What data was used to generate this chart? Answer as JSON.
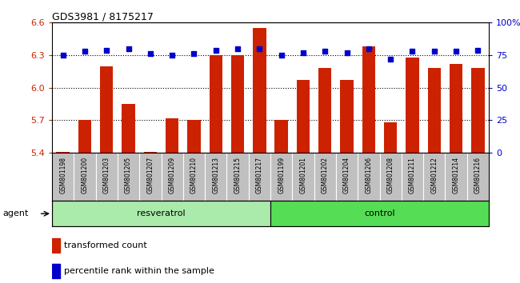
{
  "title": "GDS3981 / 8175217",
  "samples": [
    "GSM801198",
    "GSM801200",
    "GSM801203",
    "GSM801205",
    "GSM801207",
    "GSM801209",
    "GSM801210",
    "GSM801213",
    "GSM801215",
    "GSM801217",
    "GSM801199",
    "GSM801201",
    "GSM801202",
    "GSM801204",
    "GSM801206",
    "GSM801208",
    "GSM801211",
    "GSM801212",
    "GSM801214",
    "GSM801216"
  ],
  "bar_values": [
    5.41,
    5.7,
    6.2,
    5.85,
    5.41,
    5.72,
    5.7,
    6.3,
    6.3,
    6.55,
    5.7,
    6.07,
    6.18,
    6.07,
    6.38,
    5.68,
    6.28,
    6.18,
    6.22,
    6.18
  ],
  "percentile_values": [
    75,
    78,
    79,
    80,
    76,
    75,
    76,
    79,
    80,
    80,
    75,
    77,
    78,
    77,
    80,
    72,
    78,
    78,
    78,
    79
  ],
  "groups": [
    "resveratrol",
    "resveratrol",
    "resveratrol",
    "resveratrol",
    "resveratrol",
    "resveratrol",
    "resveratrol",
    "resveratrol",
    "resveratrol",
    "resveratrol",
    "control",
    "control",
    "control",
    "control",
    "control",
    "control",
    "control",
    "control",
    "control",
    "control"
  ],
  "bar_color": "#CC2200",
  "percentile_color": "#0000CC",
  "ylim_left": [
    5.4,
    6.6
  ],
  "ylim_right": [
    0,
    100
  ],
  "yticks_left": [
    5.4,
    5.7,
    6.0,
    6.3,
    6.6
  ],
  "yticks_right": [
    0,
    25,
    50,
    75,
    100
  ],
  "ytick_labels_right": [
    "0",
    "25",
    "50",
    "75",
    "100%"
  ],
  "hlines": [
    5.7,
    6.0,
    6.3
  ],
  "agent_label": "agent",
  "legend_bar": "transformed count",
  "legend_pct": "percentile rank within the sample",
  "tick_bg_color": "#C0C0C0",
  "resv_color": "#AAEAAA",
  "ctrl_color": "#55DD55",
  "plot_bg": "#FFFFFF"
}
